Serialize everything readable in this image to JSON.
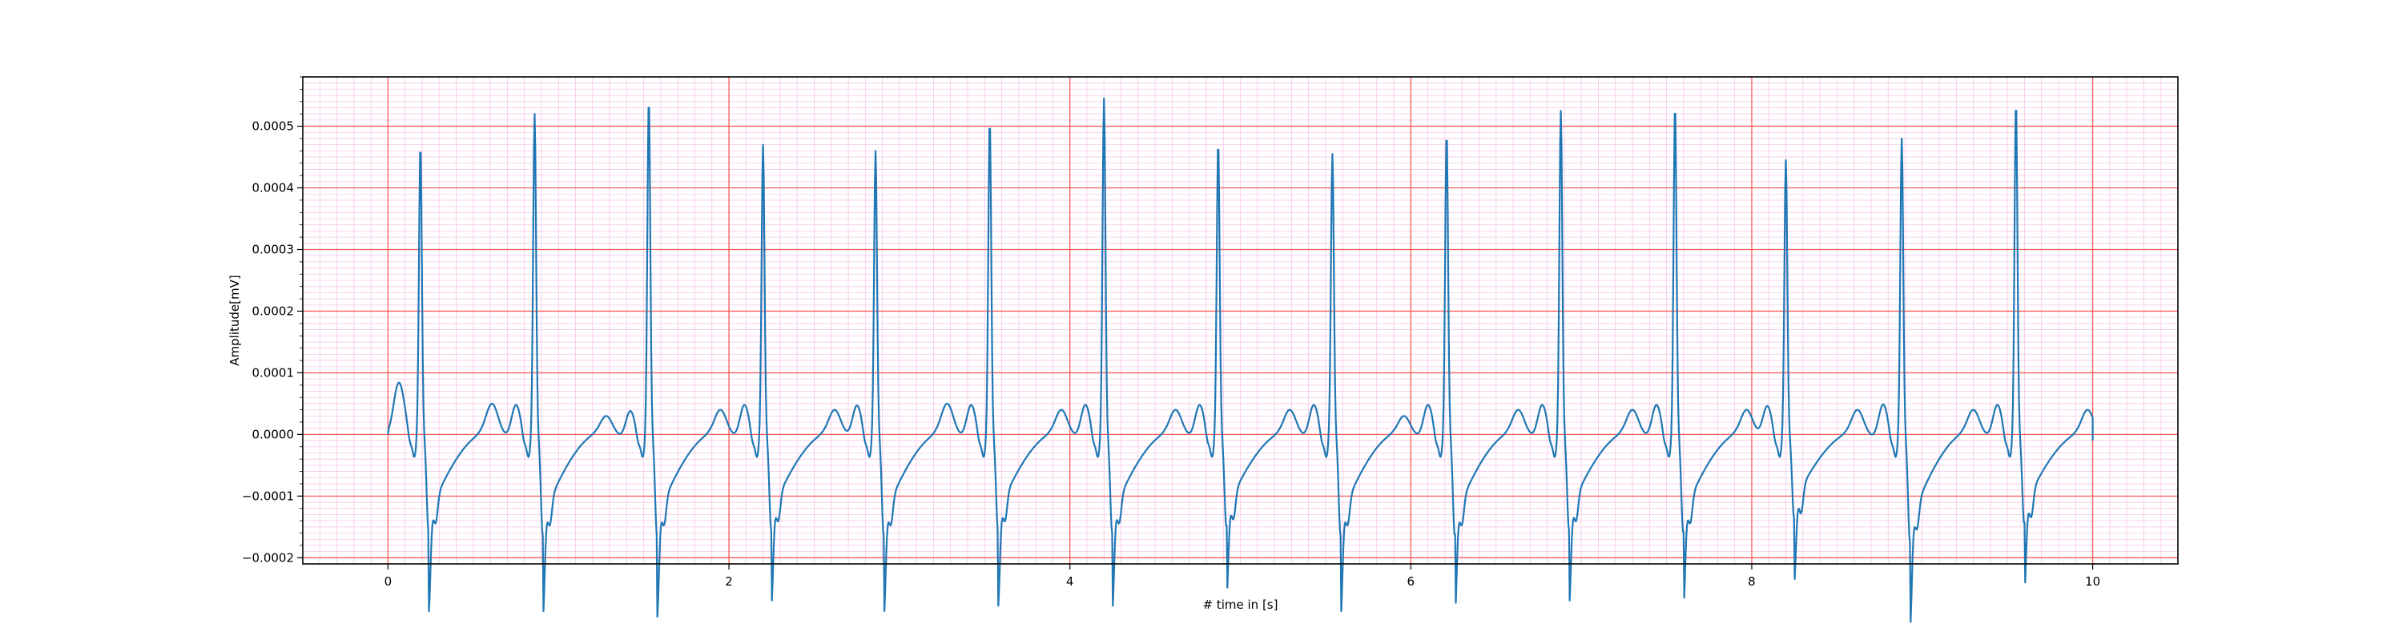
{
  "chart_data": {
    "type": "line",
    "title": "",
    "xlabel": "# time in [s]",
    "ylabel": "Amplitude[mV]",
    "xlim": [
      -0.5,
      10.5
    ],
    "ylim": [
      -0.00021,
      0.00058
    ],
    "x_ticks": [
      0,
      2,
      4,
      6,
      8,
      10
    ],
    "x_tick_labels": [
      "0",
      "2",
      "4",
      "6",
      "8",
      "10"
    ],
    "y_ticks": [
      -0.0002,
      -0.0001,
      0.0,
      0.0001,
      0.0002,
      0.0003,
      0.0004,
      0.0005
    ],
    "y_tick_labels": [
      "−0.0002",
      "−0.0001",
      "0.0000",
      "0.0001",
      "0.0002",
      "0.0003",
      "0.0004",
      "0.0005"
    ],
    "grid": {
      "major": true,
      "minor": true,
      "major_color": "#ff5a5a",
      "minor_color": "#f7c6e8"
    },
    "line_color": "#1f77b4",
    "series": [
      {
        "name": "",
        "sample_interval_s": 0.004,
        "beat_times_s": [
          0.19,
          0.86,
          1.53,
          2.2,
          2.86,
          3.53,
          4.2,
          4.87,
          5.54,
          6.21,
          6.88,
          7.55,
          8.2,
          8.88,
          9.55
        ],
        "r_peak_mV": [
          0.00047,
          0.00052,
          0.000545,
          0.00047,
          0.00046,
          0.00051,
          0.000545,
          0.000475,
          0.000455,
          0.00049,
          0.000525,
          0.000535,
          0.000445,
          0.00048,
          0.00054
        ],
        "s_trough_mV": [
          -0.00016,
          -0.000165,
          -0.000165,
          -0.000155,
          -0.000165,
          -0.000155,
          -0.00016,
          -0.00015,
          -0.000165,
          -0.000165,
          -0.000155,
          -0.00016,
          -0.000135,
          -0.000175,
          -0.000145
        ],
        "t_wave_peak_mV": [
          5e-05,
          3e-05,
          4e-05,
          4e-05,
          5e-05,
          4e-05,
          4e-05,
          4e-05,
          3e-05,
          4e-05,
          4e-05,
          4e-05,
          4e-05,
          4e-05,
          4e-05
        ],
        "p_wave_peak_mV": [
          5e-05,
          5e-05,
          4e-05,
          5e-05,
          5e-05,
          5e-05,
          5e-05,
          5e-05,
          5e-05,
          5e-05,
          5e-05,
          5e-05,
          5e-05,
          5e-05,
          5e-05
        ],
        "start_mV": 0.0,
        "end_mV": -1e-05,
        "t_end_s": 10.0
      }
    ]
  }
}
